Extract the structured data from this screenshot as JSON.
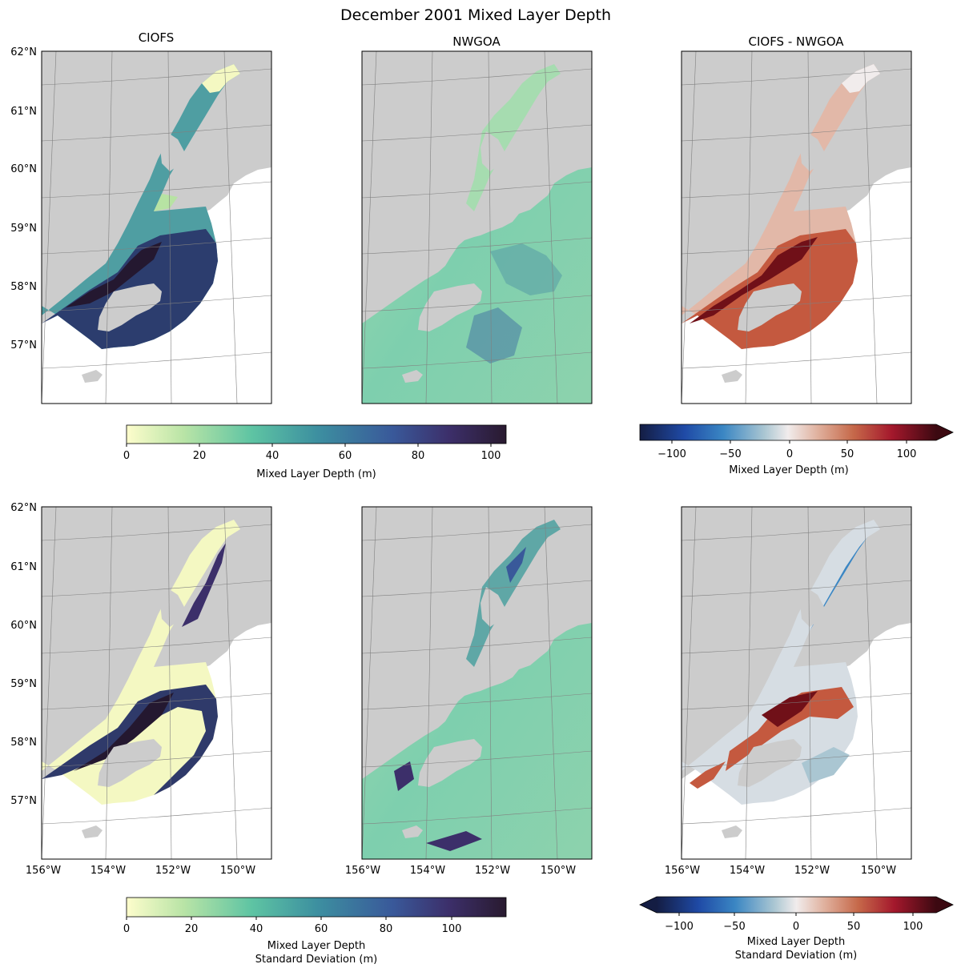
{
  "figure": {
    "title": "December 2001 Mixed Layer Depth"
  },
  "panels": {
    "col_titles": [
      "CIOFS",
      "NWGOA",
      "CIOFS - NWGOA"
    ],
    "lat_labels": [
      "62°N",
      "61°N",
      "60°N",
      "59°N",
      "58°N",
      "57°N"
    ],
    "lon_labels": [
      "156°W",
      "154°W",
      "152°W",
      "150°W"
    ]
  },
  "colorbars": {
    "top_left": {
      "label": "Mixed Layer Depth (m)",
      "ticks": [
        "0",
        "20",
        "40",
        "60",
        "80",
        "100"
      ],
      "range": [
        0,
        104
      ],
      "colormap": "deep (light yellow to dark purple)"
    },
    "top_right": {
      "label": "Mixed Layer Depth (m)",
      "ticks": [
        "−100",
        "−50",
        "0",
        "50",
        "100"
      ],
      "range": [
        -125,
        125
      ],
      "colormap": "balance (diverging blue-white-red)",
      "extend": "max"
    },
    "bottom_left": {
      "label_line1": "Mixed Layer Depth",
      "label_line2": "Standard Deviation (m)",
      "ticks": [
        "0",
        "20",
        "40",
        "60",
        "80",
        "100"
      ],
      "range": [
        0,
        116
      ],
      "colormap": "deep (light yellow to dark purple)"
    },
    "bottom_right": {
      "label_line1": "Mixed Layer Depth",
      "label_line2": "Standard Deviation (m)",
      "ticks": [
        "−100",
        "−50",
        "0",
        "50",
        "100"
      ],
      "range": [
        -125,
        125
      ],
      "colormap": "balance (diverging blue-white-red)",
      "extend": "both"
    }
  },
  "colors": {
    "land": "#cccccc",
    "grid": "#808080",
    "seq_low": "#fdfdcc",
    "seq_mid": "#5ec4a3",
    "seq_high": "#291a2f",
    "div_low": "#141d43",
    "div_mid": "#f1ecec",
    "div_high": "#3c0911"
  }
}
